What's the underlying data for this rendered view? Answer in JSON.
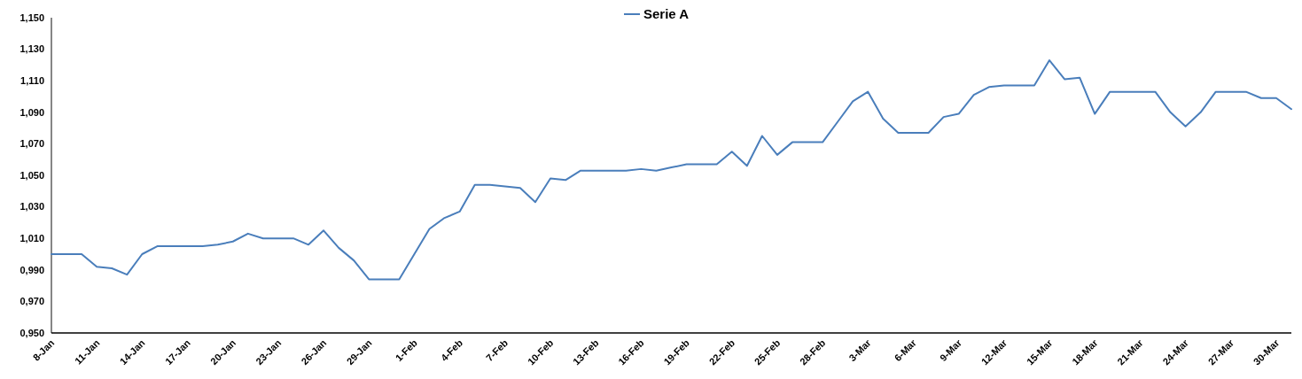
{
  "chart_data": {
    "type": "line",
    "legend": "top",
    "marker": "none",
    "line_style": "solid",
    "grid": false,
    "x": [
      "--01-08",
      "--01-09",
      "--01-10",
      "--01-11",
      "--01-12",
      "--01-13",
      "--01-14",
      "--01-15",
      "--01-16",
      "--01-17",
      "--01-18",
      "--01-19",
      "--01-20",
      "--01-21",
      "--01-22",
      "--01-23",
      "--01-24",
      "--01-25",
      "--01-26",
      "--01-27",
      "--01-28",
      "--01-29",
      "--01-30",
      "--01-31",
      "--02-01",
      "--02-02",
      "--02-03",
      "--02-04",
      "--02-05",
      "--02-06",
      "--02-07",
      "--02-08",
      "--02-09",
      "--02-10",
      "--02-11",
      "--02-12",
      "--02-13",
      "--02-14",
      "--02-15",
      "--02-16",
      "--02-17",
      "--02-18",
      "--02-19",
      "--02-20",
      "--02-21",
      "--02-22",
      "--02-23",
      "--02-24",
      "--02-25",
      "--02-26",
      "--02-27",
      "--02-28",
      "--03-01",
      "--03-02",
      "--03-03",
      "--03-04",
      "--03-05",
      "--03-06",
      "--03-07",
      "--03-08",
      "--03-09",
      "--03-10",
      "--03-11",
      "--03-12",
      "--03-13",
      "--03-14",
      "--03-15",
      "--03-16",
      "--03-17",
      "--03-18",
      "--03-19",
      "--03-20",
      "--03-21",
      "--03-22",
      "--03-23",
      "--03-24",
      "--03-25",
      "--03-26",
      "--03-27",
      "--03-28",
      "--03-29",
      "--03-30",
      "--03-31"
    ],
    "series": [
      {
        "name": "Serie A",
        "color": "#4a7ebb",
        "values": [
          1.0,
          1.0,
          1.0,
          0.992,
          0.991,
          0.987,
          1.0,
          1.005,
          1.005,
          1.005,
          1.005,
          1.006,
          1.008,
          1.013,
          1.01,
          1.01,
          1.01,
          1.006,
          1.015,
          1.004,
          0.996,
          0.984,
          0.984,
          0.984,
          1.0,
          1.016,
          1.023,
          1.027,
          1.044,
          1.044,
          1.043,
          1.042,
          1.033,
          1.048,
          1.047,
          1.053,
          1.053,
          1.053,
          1.053,
          1.054,
          1.053,
          1.055,
          1.057,
          1.057,
          1.057,
          1.065,
          1.056,
          1.075,
          1.063,
          1.071,
          1.071,
          1.071,
          1.084,
          1.097,
          1.103,
          1.086,
          1.077,
          1.077,
          1.077,
          1.087,
          1.089,
          1.101,
          1.106,
          1.107,
          1.107,
          1.107,
          1.123,
          1.111,
          1.112,
          1.089,
          1.103,
          1.103,
          1.103,
          1.103,
          1.09,
          1.081,
          1.09,
          1.103,
          1.103,
          1.103,
          1.099,
          1.099,
          1.092
        ]
      }
    ],
    "xlim": [
      "--01-08",
      "--03-31"
    ],
    "xticks": [
      {
        "value": "--01-08",
        "label": "8-Jan"
      },
      {
        "value": "--01-11",
        "label": "11-Jan"
      },
      {
        "value": "--01-14",
        "label": "14-Jan"
      },
      {
        "value": "--01-17",
        "label": "17-Jan"
      },
      {
        "value": "--01-20",
        "label": "20-Jan"
      },
      {
        "value": "--01-23",
        "label": "23-Jan"
      },
      {
        "value": "--01-26",
        "label": "26-Jan"
      },
      {
        "value": "--01-29",
        "label": "29-Jan"
      },
      {
        "value": "--02-01",
        "label": "1-Feb"
      },
      {
        "value": "--02-04",
        "label": "4-Feb"
      },
      {
        "value": "--02-07",
        "label": "7-Feb"
      },
      {
        "value": "--02-10",
        "label": "10-Feb"
      },
      {
        "value": "--02-13",
        "label": "13-Feb"
      },
      {
        "value": "--02-16",
        "label": "16-Feb"
      },
      {
        "value": "--02-19",
        "label": "19-Feb"
      },
      {
        "value": "--02-22",
        "label": "22-Feb"
      },
      {
        "value": "--02-25",
        "label": "25-Feb"
      },
      {
        "value": "--02-28",
        "label": "28-Feb"
      },
      {
        "value": "--03-03",
        "label": "3-Mar"
      },
      {
        "value": "--03-06",
        "label": "6-Mar"
      },
      {
        "value": "--03-09",
        "label": "9-Mar"
      },
      {
        "value": "--03-12",
        "label": "12-Mar"
      },
      {
        "value": "--03-15",
        "label": "15-Mar"
      },
      {
        "value": "--03-18",
        "label": "18-Mar"
      },
      {
        "value": "--03-21",
        "label": "21-Mar"
      },
      {
        "value": "--03-24",
        "label": "24-Mar"
      },
      {
        "value": "--03-27",
        "label": "27-Mar"
      },
      {
        "value": "--03-30",
        "label": "30-Mar"
      }
    ],
    "ylim": [
      0.95,
      1.15
    ],
    "yticks": [
      {
        "value": 0.95,
        "label": "0,950"
      },
      {
        "value": 0.97,
        "label": "0,970"
      },
      {
        "value": 0.99,
        "label": "0,990"
      },
      {
        "value": 1.01,
        "label": "1,010"
      },
      {
        "value": 1.03,
        "label": "1,030"
      },
      {
        "value": 1.05,
        "label": "1,050"
      },
      {
        "value": 1.07,
        "label": "1,070"
      },
      {
        "value": 1.09,
        "label": "1,090"
      },
      {
        "value": 1.11,
        "label": "1,110"
      },
      {
        "value": 1.13,
        "label": "1,130"
      },
      {
        "value": 1.15,
        "label": "1,150"
      }
    ]
  }
}
